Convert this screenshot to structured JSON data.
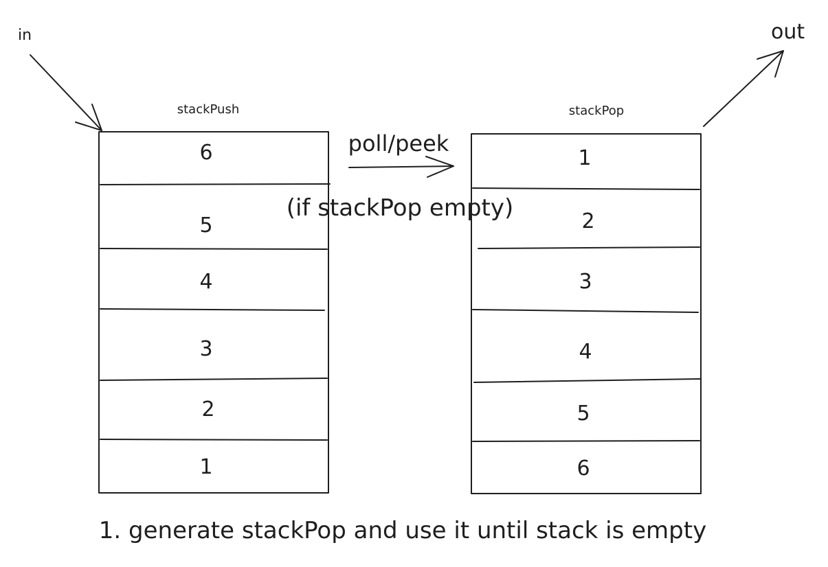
{
  "labels": {
    "in": "in",
    "out": "out",
    "transfer": "poll/peek",
    "condition": "(if stackPop empty)",
    "note": "1. generate stackPop and use it until stack is empty"
  },
  "stacks": [
    {
      "title": "stackPush",
      "cells": [
        "6",
        "5",
        "4",
        "3",
        "2",
        "1"
      ]
    },
    {
      "title": "stackPop",
      "cells": [
        "1",
        "2",
        "3",
        "4",
        "5",
        "6"
      ]
    }
  ]
}
